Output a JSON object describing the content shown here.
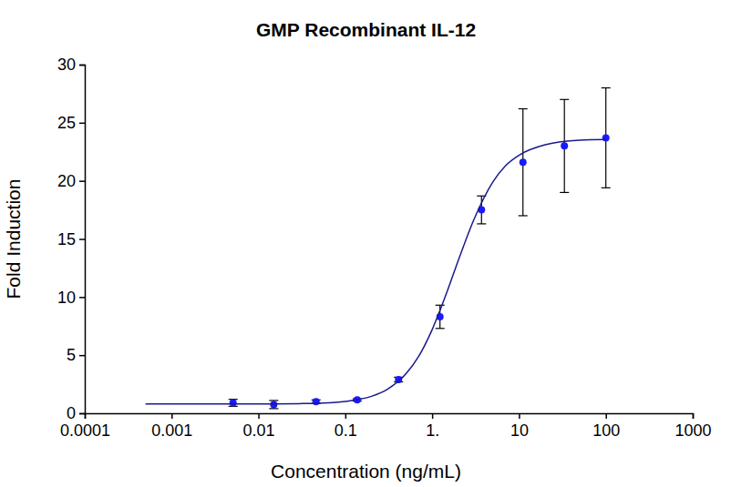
{
  "chart_data": {
    "type": "scatter",
    "title": "GMP Recombinant IL-12",
    "x_label": "Concentration (ng/mL)",
    "y_label": "Fold Induction",
    "log": "x",
    "grid": false,
    "xlim": [
      0.0001,
      1000
    ],
    "xticks": [
      0.0001,
      0.001,
      0.01,
      0.1,
      {
        "value": 1,
        "label": "1."
      },
      10,
      100,
      1000
    ],
    "ylim": [
      0,
      30
    ],
    "yticks": [
      0,
      5,
      10,
      15,
      20,
      25,
      30
    ],
    "series": [
      {
        "type": "scatter",
        "marker": "circle",
        "color": "#1a1aff",
        "x": [
          0.0051,
          0.015,
          0.046,
          0.137,
          0.41,
          1.23,
          3.7,
          11.1,
          33.3,
          100
        ],
        "values": [
          0.9,
          0.75,
          1.0,
          1.15,
          2.9,
          8.3,
          17.5,
          21.6,
          23.0,
          23.7
        ],
        "errors": [
          0.3,
          0.35,
          0.15,
          0.1,
          0.2,
          1.0,
          1.2,
          4.6,
          4.0,
          4.3
        ]
      },
      {
        "type": "line",
        "line_style": "solid",
        "color": "#1a1a8c",
        "x": [
          0.0005,
          0.001,
          0.003,
          0.01,
          0.03,
          0.05,
          0.1,
          0.2,
          0.3,
          0.5,
          0.7,
          1,
          1.5,
          2,
          3,
          5,
          7,
          10,
          20,
          50,
          100
        ],
        "values": [
          0.8,
          0.8,
          0.8,
          0.8,
          0.83,
          0.87,
          1.02,
          1.46,
          2.03,
          3.4,
          4.9,
          7.2,
          10.55,
          13.16,
          16.6,
          19.9,
          21.3,
          22.2,
          23.1,
          23.5,
          23.55
        ]
      }
    ]
  }
}
